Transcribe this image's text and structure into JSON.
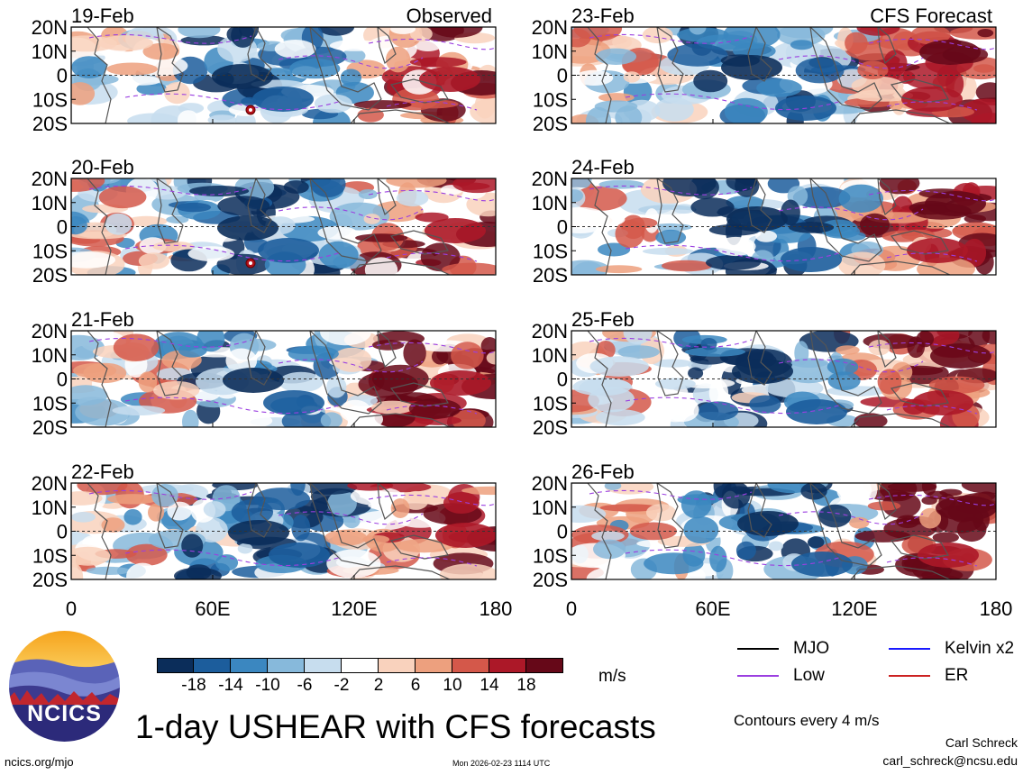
{
  "chart_data": {
    "type": "heatmap",
    "title": "1-day USHEAR with CFS forecasts",
    "variable": "USHEAR",
    "units": "m/s",
    "colorbar": {
      "levels": [
        "-18",
        "-14",
        "-10",
        "-6",
        "-2",
        "2",
        "6",
        "10",
        "14",
        "18"
      ],
      "colors": [
        "#0b2d5a",
        "#1c5d9c",
        "#3b87c0",
        "#87b9db",
        "#c7ddee",
        "#ffffff",
        "#f9d2bd",
        "#eda07e",
        "#d4584a",
        "#ac1828",
        "#660818"
      ]
    },
    "x_ticks": [
      "0",
      "60E",
      "120E",
      "180"
    ],
    "y_ticks": [
      "20N",
      "10N",
      "0",
      "10S",
      "20S"
    ],
    "xlim": [
      0,
      180
    ],
    "ylim": [
      -20,
      20
    ],
    "panels": [
      {
        "date": "19-Feb",
        "label": "Observed",
        "source": "observed",
        "cyclone": true
      },
      {
        "date": "20-Feb",
        "label": "",
        "source": "observed",
        "cyclone": true
      },
      {
        "date": "21-Feb",
        "label": "",
        "source": "observed",
        "cyclone": false
      },
      {
        "date": "22-Feb",
        "label": "",
        "source": "observed",
        "cyclone": false
      },
      {
        "date": "23-Feb",
        "label": "CFS Forecast",
        "source": "forecast",
        "cyclone": false
      },
      {
        "date": "24-Feb",
        "label": "",
        "source": "forecast",
        "cyclone": false
      },
      {
        "date": "25-Feb",
        "label": "",
        "source": "forecast",
        "cyclone": false
      },
      {
        "date": "26-Feb",
        "label": "",
        "source": "forecast",
        "cyclone": false
      }
    ],
    "legend": [
      {
        "label": "MJO",
        "color": "#000000"
      },
      {
        "label": "Kelvin x2",
        "color": "#1a1aff"
      },
      {
        "label": "Low",
        "color": "#9b3fe0"
      },
      {
        "label": "ER",
        "color": "#cc2222"
      }
    ],
    "contour_note": "Contours every 4 m/s"
  },
  "branding": {
    "logo_text": "NCICS",
    "site": "ncics.org/mjo",
    "timestamp": "Mon 2026-02-23 1114 UTC",
    "author": "Carl Schreck",
    "email": "carl_schreck@ncsu.edu"
  },
  "colors": {
    "land_outline": "#555555"
  }
}
